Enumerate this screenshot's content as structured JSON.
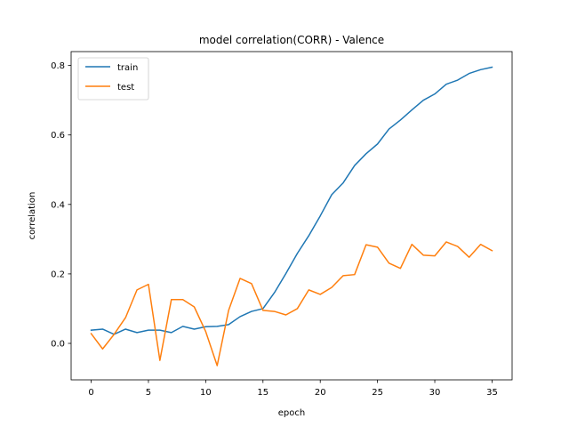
{
  "chart_data": {
    "type": "line",
    "title": "model correlation(CORR) - Valence",
    "xlabel": "epoch",
    "ylabel": "correlation",
    "xlim": [
      -1.75,
      36.75
    ],
    "ylim": [
      -0.105,
      0.84
    ],
    "xticks": [
      0,
      5,
      10,
      15,
      20,
      25,
      30,
      35
    ],
    "xtick_labels": [
      "0",
      "5",
      "10",
      "15",
      "20",
      "25",
      "30",
      "35"
    ],
    "yticks": [
      0.0,
      0.2,
      0.4,
      0.6,
      0.8
    ],
    "ytick_labels": [
      "0.0",
      "0.2",
      "0.4",
      "0.6",
      "0.8"
    ],
    "grid": false,
    "legend": "top-left",
    "x": [
      0,
      1,
      2,
      3,
      4,
      5,
      6,
      7,
      8,
      9,
      10,
      11,
      12,
      13,
      14,
      15,
      16,
      17,
      18,
      19,
      20,
      21,
      22,
      23,
      24,
      25,
      26,
      27,
      28,
      29,
      30,
      31,
      32,
      33,
      34,
      35
    ],
    "series": [
      {
        "name": "train",
        "color": "#1f77b4",
        "values": [
          0.038,
          0.041,
          0.026,
          0.041,
          0.031,
          0.038,
          0.038,
          0.031,
          0.049,
          0.041,
          0.048,
          0.049,
          0.054,
          0.077,
          0.092,
          0.1,
          0.146,
          0.201,
          0.259,
          0.31,
          0.367,
          0.428,
          0.462,
          0.512,
          0.546,
          0.574,
          0.617,
          0.643,
          0.672,
          0.7,
          0.718,
          0.746,
          0.758,
          0.777,
          0.788,
          0.795
        ]
      },
      {
        "name": "test",
        "color": "#ff7f0e",
        "values": [
          0.028,
          -0.016,
          0.026,
          0.074,
          0.154,
          0.17,
          -0.049,
          0.126,
          0.126,
          0.105,
          0.034,
          -0.064,
          0.095,
          0.187,
          0.172,
          0.095,
          0.092,
          0.082,
          0.1,
          0.154,
          0.141,
          0.161,
          0.195,
          0.198,
          0.284,
          0.277,
          0.231,
          0.216,
          0.285,
          0.254,
          0.252,
          0.292,
          0.279,
          0.248,
          0.285,
          0.267
        ]
      }
    ]
  }
}
